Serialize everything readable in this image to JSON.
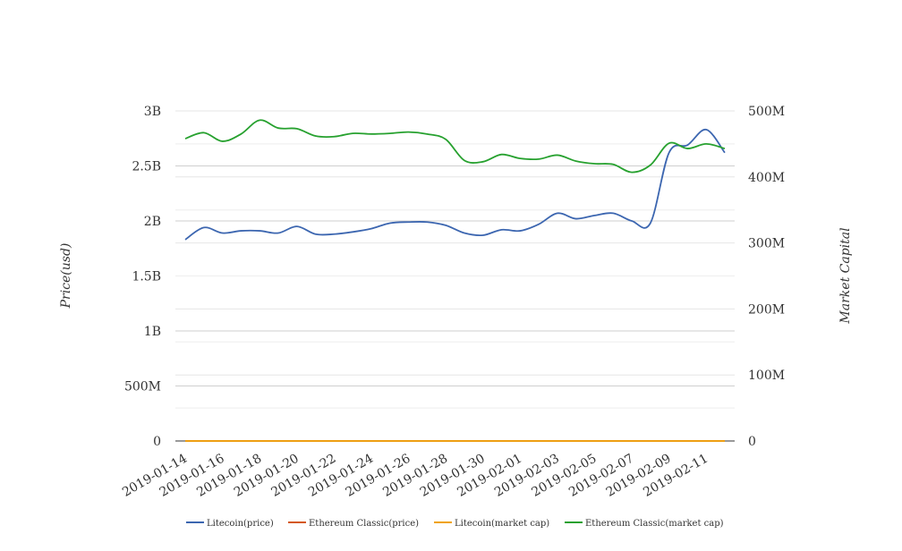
{
  "chart_data": {
    "type": "line",
    "title": "",
    "xlabel": "",
    "ylabel_left": "Price(usd)",
    "ylabel_right": "Market Capital",
    "grid": true,
    "legend_position": "bottom",
    "x_tick_labels": [
      "2019-01-14",
      "2019-01-16",
      "2019-01-18",
      "2019-01-20",
      "2019-01-22",
      "2019-01-24",
      "2019-01-26",
      "2019-01-28",
      "2019-01-30",
      "2019-02-01",
      "2019-02-03",
      "2019-02-05",
      "2019-02-07",
      "2019-02-09",
      "2019-02-11"
    ],
    "y_left": {
      "ticks": [
        "0",
        "500M",
        "1B",
        "1.5B",
        "2B",
        "2.5B",
        "3B"
      ],
      "range": [
        0,
        3000000000
      ]
    },
    "y_right": {
      "ticks": [
        "0",
        "100M",
        "200M",
        "300M",
        "400M",
        "500M"
      ],
      "range": [
        0,
        500000000
      ]
    },
    "x": [
      "2019-01-14",
      "2019-01-15",
      "2019-01-16",
      "2019-01-17",
      "2019-01-18",
      "2019-01-19",
      "2019-01-20",
      "2019-01-21",
      "2019-01-22",
      "2019-01-23",
      "2019-01-24",
      "2019-01-25",
      "2019-01-26",
      "2019-01-27",
      "2019-01-28",
      "2019-01-29",
      "2019-01-30",
      "2019-01-31",
      "2019-02-01",
      "2019-02-02",
      "2019-02-03",
      "2019-02-04",
      "2019-02-05",
      "2019-02-06",
      "2019-02-07",
      "2019-02-08",
      "2019-02-09",
      "2019-02-10",
      "2019-02-11",
      "2019-02-12"
    ],
    "series": [
      {
        "name": "Litecoin(price)",
        "color": "#3c66b0",
        "axis": "left",
        "values": [
          1830000000,
          1940000000,
          1890000000,
          1910000000,
          1910000000,
          1890000000,
          1950000000,
          1880000000,
          1880000000,
          1900000000,
          1930000000,
          1980000000,
          1990000000,
          1990000000,
          1960000000,
          1890000000,
          1870000000,
          1920000000,
          1910000000,
          1970000000,
          2070000000,
          2020000000,
          2050000000,
          2070000000,
          2000000000,
          1980000000,
          2620000000,
          2690000000,
          2830000000,
          2620000000
        ]
      },
      {
        "name": "Ethereum Classic(price)",
        "color": "#d4581b",
        "axis": "left",
        "values": [
          4.2,
          4.3,
          4.2,
          4.4,
          4.5,
          4.4,
          4.4,
          4.3,
          4.3,
          4.3,
          4.3,
          4.3,
          4.3,
          4.2,
          4.1,
          4.0,
          3.8,
          3.9,
          3.9,
          3.9,
          3.9,
          3.8,
          3.8,
          3.8,
          3.8,
          3.9,
          4.3,
          4.3,
          4.3,
          4.2
        ]
      },
      {
        "name": "Litecoin(market cap)",
        "color": "#f0a30a",
        "axis": "right",
        "values": [
          30,
          32,
          31,
          32,
          32,
          31,
          32,
          31,
          31,
          31,
          32,
          33,
          33,
          33,
          32,
          31,
          31,
          32,
          32,
          33,
          34,
          33,
          34,
          34,
          33,
          33,
          43,
          44,
          47,
          43
        ]
      },
      {
        "name": "Ethereum Classic(market cap)",
        "color": "#27a12f",
        "axis": "right",
        "values": [
          458000000,
          467000000,
          454000000,
          465000000,
          486000000,
          474000000,
          473000000,
          462000000,
          461000000,
          466000000,
          465000000,
          466000000,
          468000000,
          465000000,
          457000000,
          425000000,
          423000000,
          434000000,
          428000000,
          427000000,
          433000000,
          424000000,
          420000000,
          419000000,
          407000000,
          418000000,
          451000000,
          443000000,
          450000000,
          443000000
        ]
      }
    ]
  }
}
